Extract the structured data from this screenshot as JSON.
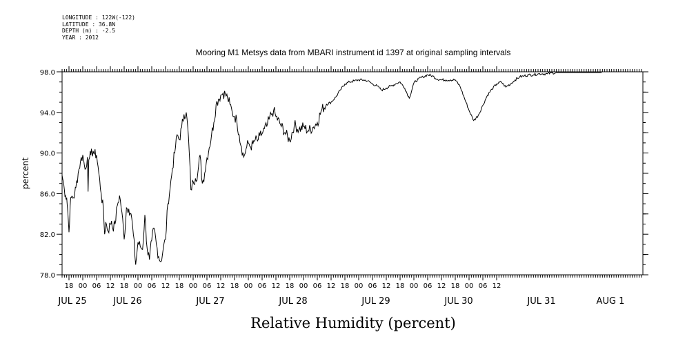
{
  "metadata": {
    "longitude": "LONGITUDE : 122W(-122)",
    "latitude": "LATITUDE : 36.8N",
    "depth": "DEPTH (m) : -2.5",
    "year": "YEAR : 2012"
  },
  "chart_data": {
    "type": "line",
    "title": "Mooring M1 Metsys data from MBARI instrument id 1397 at original sampling intervals",
    "xlabel": "Relative Humidity (percent)",
    "ylabel": "percent",
    "ylim": [
      78,
      98
    ],
    "yticks": [
      "78.0",
      "82.0",
      "86.0",
      "90.0",
      "94.0",
      "98.0"
    ],
    "hour_ticks": [
      "18",
      "00",
      "06",
      "12",
      "18",
      "00",
      "06",
      "12",
      "18",
      "00",
      "06",
      "12",
      "18",
      "00",
      "06",
      "12",
      "18",
      "00",
      "06",
      "12",
      "18",
      "00",
      "06",
      "12",
      "18",
      "00",
      "06",
      "12",
      "18",
      "00",
      "06",
      "12"
    ],
    "date_labels": [
      "JUL 25",
      "JUL 26",
      "JUL 27",
      "JUL 28",
      "JUL 29",
      "JUL 30",
      "JUL 31",
      "AUG  1"
    ],
    "grid": false,
    "series": [
      {
        "x_hours_since_jul25_00": [
          15.0,
          15.5,
          16.0,
          16.5,
          17.0,
          17.5,
          18.0,
          18.5,
          19.0,
          19.5,
          20.0,
          20.5,
          21.0,
          22.0,
          23.0,
          24.0,
          25.0,
          26.0,
          26.3,
          26.6,
          27.0,
          27.5,
          28.0,
          28.5,
          29.0,
          30.0,
          31.0,
          32.0,
          33.0,
          33.5,
          34.0,
          35.0,
          36.0,
          36.5,
          37.0,
          38.0,
          39.0,
          40.0,
          41.0,
          42.0,
          43.0,
          44.0,
          45.0,
          46.0,
          47.0,
          48.0,
          49.0,
          50.0,
          51.0,
          52.0,
          53.0,
          54.0,
          55.0,
          56.0,
          57.0,
          58.0,
          59.0,
          60.0,
          61.0,
          62.0,
          63.0,
          64.0,
          65.0,
          66.0,
          67.0,
          68.0,
          69.0,
          70.0,
          71.0,
          72.0,
          73.0,
          74.0,
          75.0,
          76.0,
          77.0,
          78.0,
          79.0,
          80.0,
          81.0,
          82.0,
          83.0,
          84.0,
          85.0,
          86.0,
          87.0,
          88.0,
          89.0,
          90.0,
          91.0,
          92.0,
          93.0,
          94.0,
          95.0,
          96.0,
          97.0,
          98.0,
          99.0,
          100.0,
          101.0,
          102.0,
          103.0,
          104.0,
          105.0,
          106.0,
          107.0,
          108.0,
          110.0,
          112.0,
          114.0,
          116.0,
          118.0,
          120.0,
          122.0,
          124.0,
          126.0,
          128.0,
          130.0,
          132.0,
          134.0,
          136.0,
          138.0,
          140.0,
          142.0,
          144.0,
          146.0,
          148.0,
          150.0,
          152.0,
          154.0,
          156.0,
          158.0,
          160.0,
          162.0,
          164.0,
          166.0,
          168.0,
          170.0,
          172.0,
          174.0,
          176.0,
          178.0,
          180.0,
          182.0,
          184.0,
          186.0,
          188.0,
          190.0,
          192.0,
          194.0,
          196.0,
          198.0,
          200.0,
          202.0,
          204.0,
          206.0,
          208.0,
          210.0,
          212.0,
          214.0,
          216.0,
          218.0,
          220.0,
          222.0,
          224.0,
          226.0,
          228.0,
          230.0,
          232.0,
          234.0,
          236.0,
          238.0,
          240.0,
          242.0,
          244.0,
          246.0,
          248.0,
          250.0,
          252.0,
          253.0
        ],
        "values": [
          87.8,
          87.2,
          86.4,
          85.8,
          85.6,
          84.2,
          82.2,
          84.8,
          85.6,
          85.7,
          85.6,
          86.0,
          86.6,
          88.0,
          89.2,
          89.8,
          88.4,
          89.6,
          86.2,
          89.3,
          89.6,
          89.8,
          90.0,
          90.2,
          89.9,
          89.8,
          88.0,
          86.0,
          84.3,
          82.0,
          83.2,
          82.3,
          83.0,
          83.3,
          82.6,
          83.0,
          84.8,
          85.8,
          84.2,
          81.5,
          84.6,
          84.5,
          84.0,
          82.0,
          79.0,
          81.2,
          80.8,
          80.5,
          83.9,
          80.6,
          79.5,
          81.4,
          82.6,
          81.0,
          79.8,
          79.3,
          80.6,
          81.5,
          85.0,
          86.6,
          88.5,
          90.0,
          91.8,
          91.3,
          92.5,
          93.8,
          94.0,
          91.5,
          86.4,
          87.2,
          87.5,
          88.0,
          89.8,
          87.0,
          88.0,
          89.5,
          90.5,
          91.8,
          93.0,
          94.8,
          95.3,
          95.7,
          95.9,
          95.8,
          95.4,
          94.8,
          94.0,
          93.6,
          93.2,
          91.8,
          90.6,
          89.6,
          90.4,
          91.0,
          90.6,
          90.9,
          91.3,
          91.2,
          91.7,
          91.9,
          92.4,
          92.6,
          93.3,
          93.8,
          94.2,
          93.6,
          92.8,
          92.0,
          91.2,
          92.8,
          92.3,
          92.6,
          92.2,
          92.5,
          93.0,
          94.3,
          94.8,
          95.0,
          95.5,
          96.2,
          96.8,
          97.0,
          97.1,
          97.2,
          97.2,
          97.1,
          96.8,
          96.6,
          96.2,
          96.4,
          96.6,
          96.8,
          97.0,
          96.4,
          95.4,
          96.9,
          97.3,
          97.5,
          97.7,
          97.6,
          97.3,
          97.2,
          97.2,
          97.2,
          97.2,
          96.6,
          95.4,
          94.2,
          93.2,
          93.7,
          94.7,
          95.7,
          96.3,
          96.8,
          97.0,
          96.5,
          96.8,
          97.2,
          97.5,
          97.6,
          97.7,
          97.7,
          97.8,
          97.8,
          97.8,
          97.9,
          97.9,
          97.9,
          97.9,
          97.9,
          97.9,
          97.9,
          97.9,
          97.9,
          97.9,
          97.9,
          97.9
        ]
      }
    ]
  }
}
